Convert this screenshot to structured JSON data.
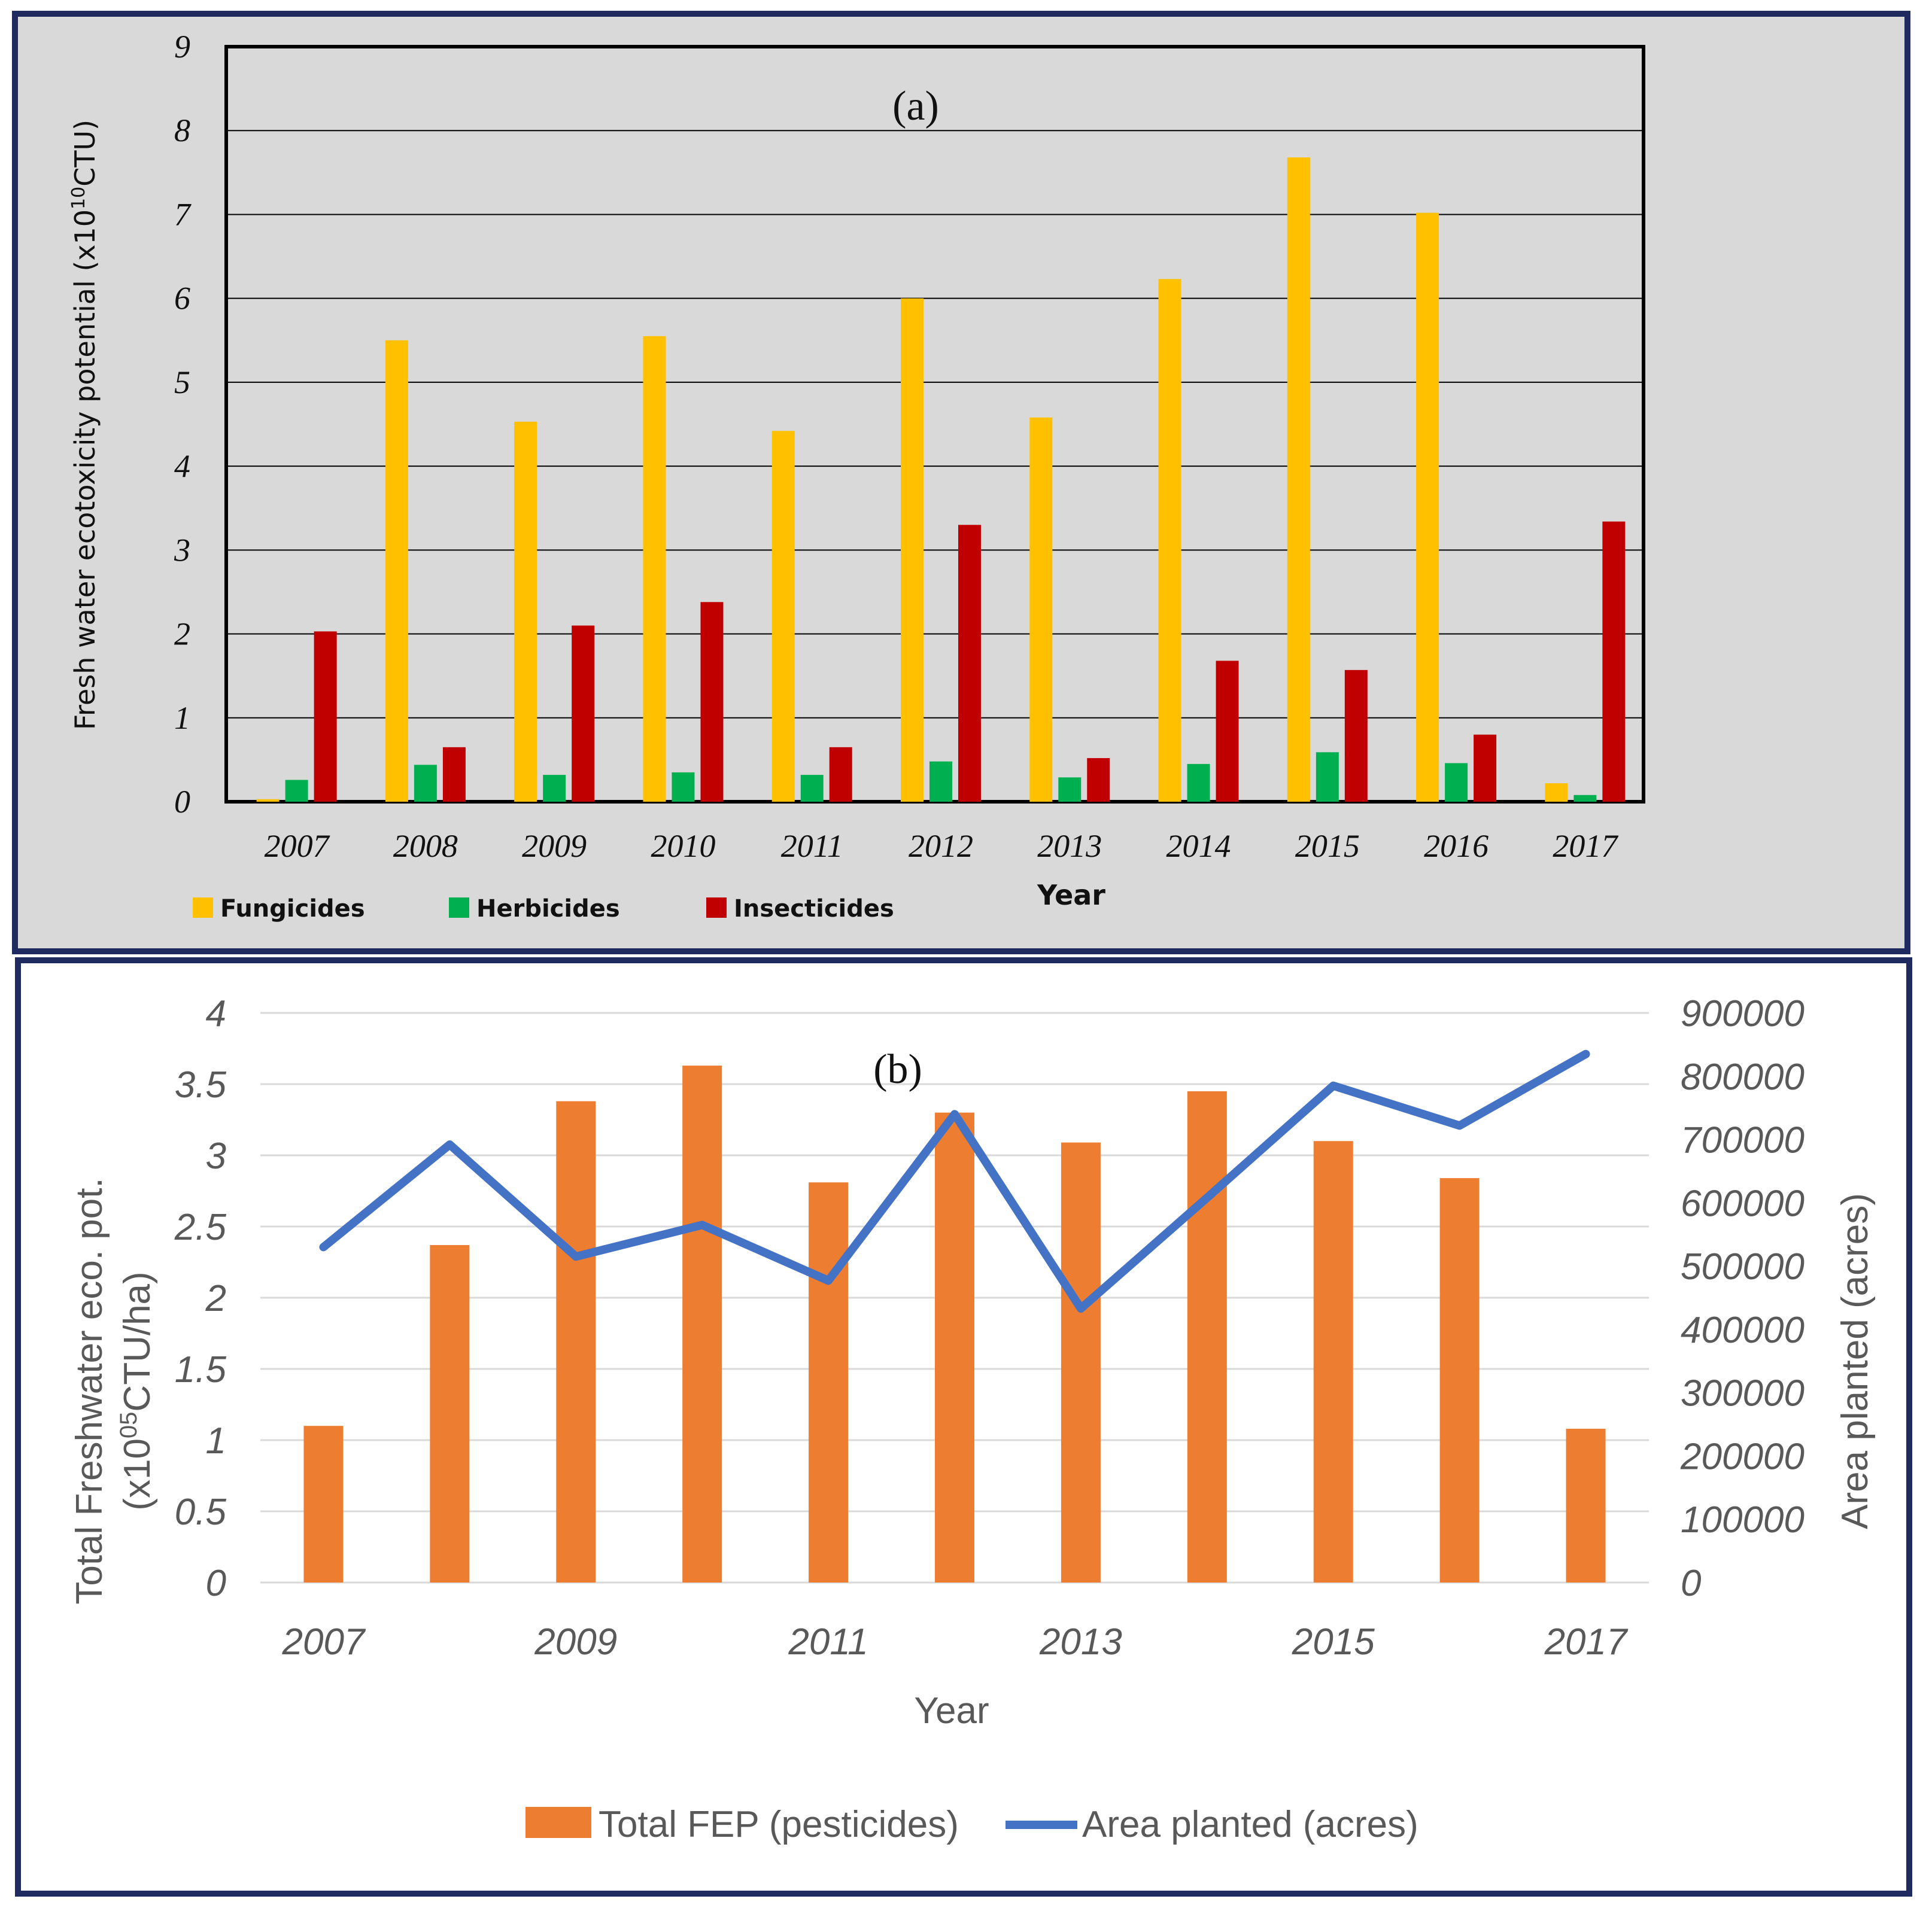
{
  "chart_data": [
    {
      "type": "bar",
      "panel_label": "(a)",
      "categories": [
        "2007",
        "2008",
        "2009",
        "2010",
        "2011",
        "2012",
        "2013",
        "2014",
        "2015",
        "2016",
        "2017"
      ],
      "series": [
        {
          "name": "Fungicides",
          "color": "#FFC000",
          "values": [
            0.03,
            5.5,
            4.53,
            5.55,
            4.42,
            6.0,
            4.58,
            6.23,
            7.68,
            7.02,
            0.22
          ]
        },
        {
          "name": "Herbicides",
          "color": "#00B050",
          "values": [
            0.26,
            0.44,
            0.32,
            0.35,
            0.32,
            0.48,
            0.29,
            0.45,
            0.59,
            0.46,
            0.08
          ]
        },
        {
          "name": "Insecticides",
          "color": "#C00000",
          "values": [
            2.03,
            0.65,
            2.1,
            2.38,
            0.65,
            3.3,
            0.52,
            1.68,
            1.57,
            0.8,
            3.34
          ]
        }
      ],
      "xlabel": "Year",
      "ylabel_main": "Fresh water ecotoxicity potential (x10",
      "ylabel_sup": "10",
      "ylabel_tail": "CTU)",
      "ylim": [
        0,
        9
      ],
      "yticks": [
        "0",
        "1",
        "2",
        "3",
        "4",
        "5",
        "6",
        "7",
        "8",
        "9"
      ],
      "grid": true,
      "legend_position": "bottom-left"
    },
    {
      "type": "bar+line",
      "panel_label": "(b)",
      "categories": [
        "2007",
        "2008",
        "2009",
        "2010",
        "2011",
        "2012",
        "2013",
        "2014",
        "2015",
        "2016",
        "2017"
      ],
      "xtick_labels": [
        "2007",
        "",
        "2009",
        "",
        "2011",
        "",
        "2013",
        "",
        "2015",
        "",
        "2017"
      ],
      "series": [
        {
          "name": "Total FEP (pesticides)",
          "type": "bar",
          "axis": "left",
          "color": "#ED7D31",
          "values": [
            1.1,
            2.37,
            3.38,
            3.63,
            2.81,
            3.3,
            3.09,
            3.45,
            3.1,
            2.84,
            1.08
          ]
        },
        {
          "name": "Area planted (acres)",
          "type": "line",
          "axis": "right",
          "color": "#4472C4",
          "values": [
            530000,
            692000,
            515000,
            565000,
            477000,
            740000,
            433000,
            608000,
            785000,
            722000,
            835000
          ]
        }
      ],
      "xlabel": "Year",
      "ylabel_left_line1": "Total Freshwater eco. pot.",
      "ylabel_left_line2_pre": "(x10",
      "ylabel_left_line2_sup": "05",
      "ylabel_left_line2_post": "CTU/ha)",
      "ylabel_right": "Area planted (acres)",
      "ylim_left": [
        0,
        4
      ],
      "yticks_left": [
        "0",
        "0.5",
        "1",
        "1.5",
        "2",
        "2.5",
        "3",
        "3.5",
        "4"
      ],
      "ylim_right": [
        0,
        900000
      ],
      "yticks_right": [
        "0",
        "100000",
        "200000",
        "300000",
        "400000",
        "500000",
        "600000",
        "700000",
        "800000",
        "900000"
      ],
      "grid": true,
      "legend_position": "bottom"
    }
  ]
}
